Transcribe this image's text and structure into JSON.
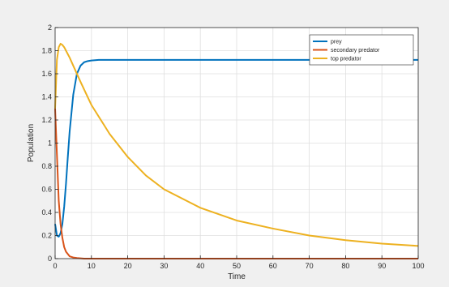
{
  "chart_data": {
    "type": "line",
    "title": "",
    "xlabel": "Time",
    "ylabel": "Population",
    "xlim": [
      0,
      100
    ],
    "ylim": [
      0,
      2
    ],
    "xticks": [
      0,
      10,
      20,
      30,
      40,
      50,
      60,
      70,
      80,
      90,
      100
    ],
    "yticks": [
      0,
      0.2,
      0.4,
      0.6,
      0.8,
      1,
      1.2,
      1.4,
      1.6,
      1.8,
      2
    ],
    "xtick_labels": [
      "0",
      "10",
      "20",
      "30",
      "40",
      "50",
      "60",
      "70",
      "80",
      "90",
      "100"
    ],
    "ytick_labels": [
      "0",
      "0.2",
      "0.4",
      "0.6",
      "0.8",
      "1",
      "1.2",
      "1.4",
      "1.6",
      "1.8",
      "2"
    ],
    "grid": true,
    "legend": "top-right",
    "series": [
      {
        "name": "prey",
        "color": "#0072BD",
        "x": [
          0,
          0.5,
          1,
          1.5,
          2,
          2.5,
          3,
          3.5,
          4,
          5,
          6,
          7,
          8,
          9,
          10,
          12,
          15,
          20,
          30,
          40,
          50,
          60,
          70,
          80,
          90,
          100
        ],
        "y": [
          0.3,
          0.2,
          0.19,
          0.22,
          0.3,
          0.45,
          0.65,
          0.88,
          1.1,
          1.42,
          1.6,
          1.67,
          1.7,
          1.71,
          1.715,
          1.72,
          1.72,
          1.72,
          1.72,
          1.72,
          1.72,
          1.72,
          1.72,
          1.72,
          1.72,
          1.72
        ]
      },
      {
        "name": "secondary predator",
        "color": "#D95319",
        "x": [
          0,
          0.5,
          1,
          1.5,
          2,
          2.5,
          3,
          4,
          5,
          6,
          8,
          10,
          100
        ],
        "y": [
          1.3,
          0.9,
          0.5,
          0.3,
          0.18,
          0.1,
          0.06,
          0.02,
          0.01,
          0.005,
          0,
          0,
          0
        ]
      },
      {
        "name": "top predator",
        "color": "#EDB120",
        "x": [
          0,
          0.5,
          1,
          1.5,
          2,
          2.5,
          3,
          4,
          5,
          7,
          10,
          15,
          20,
          25,
          30,
          40,
          50,
          60,
          70,
          80,
          90,
          100
        ],
        "y": [
          1.3,
          1.72,
          1.83,
          1.86,
          1.85,
          1.83,
          1.8,
          1.74,
          1.67,
          1.53,
          1.33,
          1.08,
          0.88,
          0.72,
          0.6,
          0.44,
          0.33,
          0.26,
          0.2,
          0.16,
          0.13,
          0.11
        ]
      }
    ]
  }
}
